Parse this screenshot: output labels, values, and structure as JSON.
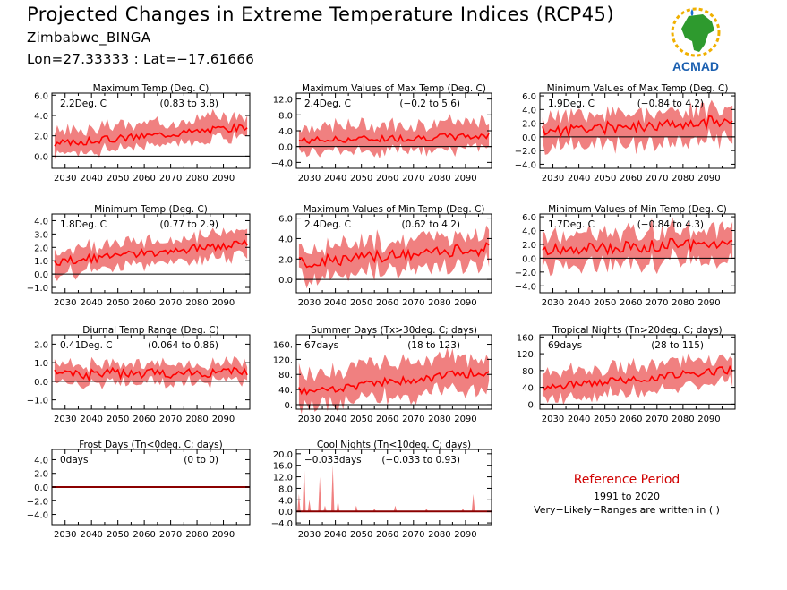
{
  "header": {
    "title": "Projected Changes in Extreme Temperature Indices (RCP45)",
    "location": "Zimbabwe_BINGA",
    "coords": "Lon=27.33333 : Lat=−17.61666",
    "logo_text": "ACMAD"
  },
  "reference": {
    "title": "Reference Period",
    "period": "1991 to 2020",
    "note": "Very−Likely−Ranges are written in ( )"
  },
  "colors": {
    "median": "#ff0000",
    "band": "#f08080",
    "zero_line": "#000000",
    "frost_line": "#8b0000"
  },
  "chart_data": [
    {
      "type": "area",
      "title": "Maximum Temp (Deg. C)",
      "value": "2.2Deg. C",
      "range": "(0.83 to 3.8)",
      "xlabel": "",
      "ylabel": "",
      "xlim": [
        2025,
        2100
      ],
      "ylim": [
        -1.2,
        6.2
      ],
      "yticks": [
        "6.0",
        "4.0",
        "2.0",
        "0.0"
      ],
      "yvals": [
        6,
        4,
        2,
        0
      ],
      "xticks": [
        "2030",
        "2040",
        "2050",
        "2060",
        "2070",
        "2080",
        "2090"
      ],
      "median_start": 1.2,
      "median_end": 2.9,
      "noise": 0.12,
      "band_low": 1.0,
      "band_high": 1.2,
      "seed": 3
    },
    {
      "type": "area",
      "title": "Maximum Values of Max Temp (Deg. C)",
      "value": "2.4Deg. C",
      "range": "(−0.2 to 5.6)",
      "xlabel": "",
      "ylabel": "",
      "xlim": [
        2025,
        2100
      ],
      "ylim": [
        -5.5,
        13.5
      ],
      "yticks": [
        "12.0",
        "8.0",
        "4.0",
        "0.0",
        "−4.0"
      ],
      "yvals": [
        12,
        8,
        4,
        0,
        -4
      ],
      "xticks": [
        "2030",
        "2040",
        "2050",
        "2060",
        "2070",
        "2080",
        "2090"
      ],
      "median_start": 1.5,
      "median_end": 2.7,
      "noise": 0.3,
      "band_low": 3.0,
      "band_high": 3.5,
      "seed": 7
    },
    {
      "type": "area",
      "title": "Minimum Values of Max Temp (Deg. C)",
      "value": "1.9Deg. C",
      "range": "(−0.84 to 4.2)",
      "xlabel": "",
      "ylabel": "",
      "xlim": [
        2025,
        2100
      ],
      "ylim": [
        -4.6,
        6.4
      ],
      "yticks": [
        "6.0",
        "4.0",
        "2.0",
        "0.0",
        "−2.0",
        "−4.0"
      ],
      "yvals": [
        6,
        4,
        2,
        0,
        -2,
        -4
      ],
      "xticks": [
        "2030",
        "2040",
        "2050",
        "2060",
        "2070",
        "2080",
        "2090"
      ],
      "median_start": 0.8,
      "median_end": 2.4,
      "noise": 0.3,
      "band_low": 2.4,
      "band_high": 2.0,
      "seed": 11
    },
    {
      "type": "area",
      "title": "Minimum Temp (Deg. C)",
      "value": "1.8Deg. C",
      "range": "(0.77 to 2.9)",
      "xlabel": "",
      "ylabel": "",
      "xlim": [
        2025,
        2100
      ],
      "ylim": [
        -1.4,
        4.5
      ],
      "yticks": [
        "4.0",
        "3.0",
        "2.0",
        "1.0",
        "0.0",
        "−1.0"
      ],
      "yvals": [
        4,
        3,
        2,
        1,
        0,
        -1
      ],
      "xticks": [
        "2030",
        "2040",
        "2050",
        "2060",
        "2070",
        "2080",
        "2090"
      ],
      "median_start": 0.9,
      "median_end": 2.3,
      "noise": 0.1,
      "band_low": 0.9,
      "band_high": 0.9,
      "seed": 13
    },
    {
      "type": "area",
      "title": "Maximum Values of Min Temp (Deg. C)",
      "value": "2.4Deg. C",
      "range": "(0.62 to 4.2)",
      "xlabel": "",
      "ylabel": "",
      "xlim": [
        2025,
        2100
      ],
      "ylim": [
        -1.3,
        6.4
      ],
      "yticks": [
        "6.0",
        "4.0",
        "2.0",
        "0.0"
      ],
      "yvals": [
        6,
        4,
        2,
        0
      ],
      "xticks": [
        "2030",
        "2040",
        "2050",
        "2060",
        "2070",
        "2080",
        "2090"
      ],
      "median_start": 1.6,
      "median_end": 3.0,
      "noise": 0.2,
      "band_low": 1.5,
      "band_high": 1.5,
      "seed": 17
    },
    {
      "type": "area",
      "title": "Minimum Values of Min Temp (Deg. C)",
      "value": "1.7Deg. C",
      "range": "(−0.84 to 4.3)",
      "xlabel": "",
      "ylabel": "",
      "xlim": [
        2025,
        2100
      ],
      "ylim": [
        -5.0,
        6.4
      ],
      "yticks": [
        "6.0",
        "4.0",
        "2.0",
        "0.0",
        "−2.0",
        "−4.0"
      ],
      "yvals": [
        6,
        4,
        2,
        0,
        -2,
        -4
      ],
      "xticks": [
        "2030",
        "2040",
        "2050",
        "2060",
        "2070",
        "2080",
        "2090"
      ],
      "median_start": 1.0,
      "median_end": 2.4,
      "noise": 0.3,
      "band_low": 2.3,
      "band_high": 2.2,
      "seed": 19
    },
    {
      "type": "area",
      "title": "Diurnal Temp Range (Deg. C)",
      "value": "0.41Deg. C",
      "range": "(0.064 to 0.86)",
      "xlabel": "",
      "ylabel": "",
      "xlim": [
        2025,
        2100
      ],
      "ylim": [
        -1.5,
        2.5
      ],
      "yticks": [
        "2.0",
        "1.0",
        "0.0",
        "−1.0"
      ],
      "yvals": [
        2,
        1,
        0,
        -1
      ],
      "xticks": [
        "2030",
        "2040",
        "2050",
        "2060",
        "2070",
        "2080",
        "2090"
      ],
      "median_start": 0.35,
      "median_end": 0.55,
      "noise": 0.1,
      "band_low": 0.5,
      "band_high": 0.5,
      "seed": 23
    },
    {
      "type": "area",
      "title": "Summer Days (Tx>30deg. C; days)",
      "value": "67days",
      "range": "(18 to 123)",
      "xlabel": "",
      "ylabel": "",
      "xlim": [
        2025,
        2100
      ],
      "ylim": [
        -12,
        185
      ],
      "yticks": [
        "160.",
        "120.",
        "80.",
        "40.",
        "0."
      ],
      "yvals": [
        160,
        120,
        80,
        40,
        0
      ],
      "xticks": [
        "2030",
        "2040",
        "2050",
        "2060",
        "2070",
        "2080",
        "2090"
      ],
      "median_start": 35,
      "median_end": 88,
      "noise": 4,
      "band_low": 40,
      "band_high": 45,
      "seed": 29
    },
    {
      "type": "area",
      "title": "Tropical Nights (Tn>20deg. C; days)",
      "value": "69days",
      "range": "(28 to 115)",
      "xlabel": "",
      "ylabel": "",
      "xlim": [
        2025,
        2100
      ],
      "ylim": [
        -12,
        165
      ],
      "yticks": [
        "160.",
        "120.",
        "80.",
        "40.",
        "0."
      ],
      "yvals": [
        160,
        120,
        80,
        40,
        0
      ],
      "xticks": [
        "2030",
        "2040",
        "2050",
        "2060",
        "2070",
        "2080",
        "2090"
      ],
      "median_start": 40,
      "median_end": 82,
      "noise": 3,
      "band_low": 30,
      "band_high": 32,
      "seed": 31
    },
    {
      "type": "line",
      "title": "Frost Days (Tn<0deg. C; days)",
      "value": "0days",
      "range": "(0 to 0)",
      "xlabel": "",
      "ylabel": "",
      "xlim": [
        2025,
        2100
      ],
      "ylim": [
        -5.5,
        5.5
      ],
      "yticks": [
        "4.0",
        "2.0",
        "0.0",
        "−2.0",
        "−4.0"
      ],
      "yvals": [
        4,
        2,
        0,
        -2,
        -4
      ],
      "xticks": [
        "2030",
        "2040",
        "2050",
        "2060",
        "2070",
        "2080",
        "2090"
      ],
      "constant": 0
    },
    {
      "type": "area",
      "title": "Cool Nights (Tn<10deg. C; days)",
      "value": "−0.033days",
      "range": "(−0.033 to 0.93)",
      "xlabel": "",
      "ylabel": "",
      "xlim": [
        2025,
        2100
      ],
      "ylim": [
        -4.6,
        21.5
      ],
      "yticks": [
        "20.0",
        "16.0",
        "12.0",
        "8.0",
        "4.0",
        "0.0",
        "−4.0"
      ],
      "yvals": [
        20,
        16,
        12,
        8,
        4,
        0,
        -4
      ],
      "xticks": [
        "2030",
        "2040",
        "2050",
        "2060",
        "2070",
        "2080",
        "2090"
      ],
      "spikes": [
        [
          2026,
          6
        ],
        [
          2028,
          17
        ],
        [
          2030,
          4
        ],
        [
          2034,
          12
        ],
        [
          2036,
          2
        ],
        [
          2039,
          16
        ],
        [
          2041,
          4
        ],
        [
          2048,
          2
        ],
        [
          2055,
          1
        ],
        [
          2063,
          2
        ],
        [
          2075,
          1
        ],
        [
          2089,
          1
        ],
        [
          2093,
          6
        ]
      ]
    }
  ]
}
